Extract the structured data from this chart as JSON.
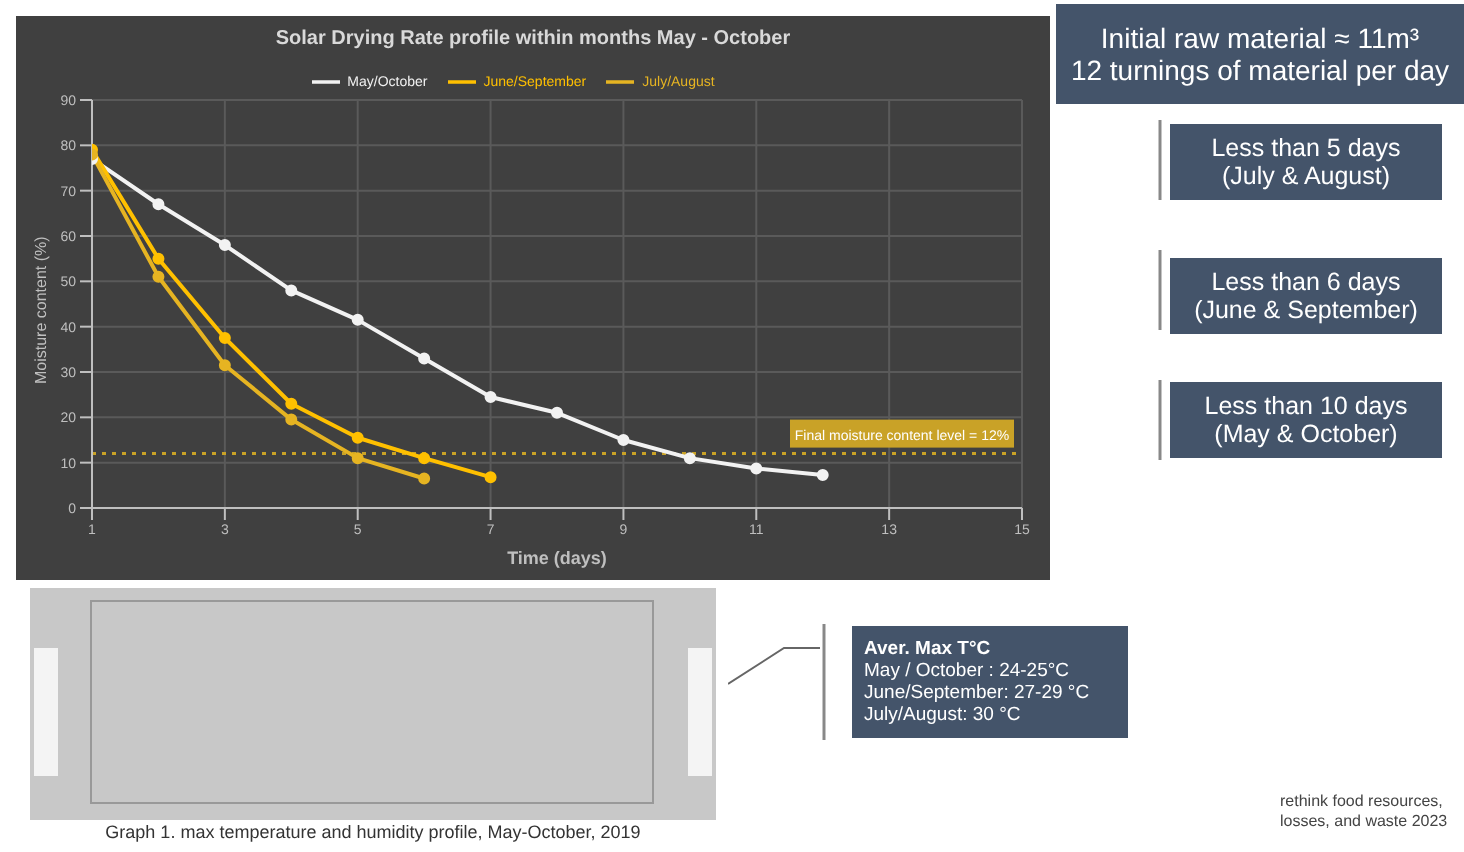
{
  "chart_data": {
    "type": "line",
    "title": "Solar Drying Rate profile within months May - October",
    "xlabel": "Time (days)",
    "ylabel": "Moisture content (%)",
    "x": [
      1,
      2,
      3,
      4,
      5,
      6,
      7,
      8,
      9,
      10,
      11,
      12
    ],
    "series": [
      {
        "name": "May/October",
        "color": "#f2f2f2",
        "values": [
          77,
          67,
          58,
          48,
          41.5,
          33,
          24.5,
          21,
          15,
          11,
          8.7,
          7.3
        ]
      },
      {
        "name": "June/September",
        "color": "#ffc000",
        "values": [
          79,
          55,
          37.5,
          23,
          15.5,
          11,
          6.8,
          null,
          null,
          null,
          null,
          null
        ]
      },
      {
        "name": "July/August",
        "color": "#e6b422",
        "values": [
          78,
          51,
          31.5,
          19.5,
          11,
          6.5,
          null,
          null,
          null,
          null,
          null,
          null
        ]
      }
    ],
    "xlim": [
      1,
      15
    ],
    "xticks": [
      1,
      3,
      5,
      7,
      9,
      11,
      13,
      15
    ],
    "ylim": [
      0,
      90
    ],
    "yticks": [
      0,
      10,
      20,
      30,
      40,
      50,
      60,
      70,
      80,
      90
    ],
    "grid": true,
    "legend": "top",
    "marker": "circle",
    "line_style": "solid",
    "ref_lines": [
      {
        "axis": "y",
        "value": 12,
        "label": "Final moisture content level = 12%",
        "color": "#c9a227",
        "line_style": "dotted"
      }
    ],
    "annotations": [
      "Initial raw material ≈ 11m³\n12 turnings of material per day",
      "Less than 5 days\n(July & August)",
      "Less than 6 days\n(June & September)",
      "Less than 10 days\n(May & October)",
      "Graph 1. max temperature and humidity profile, May-October, 2019",
      "Aver. Max T°C\nMay / October : 24-25°C\nJune/September: 27-29 °C\nJuly/August: 30 °C",
      "rethink food resources,\nlosses, and waste 2023"
    ]
  }
}
